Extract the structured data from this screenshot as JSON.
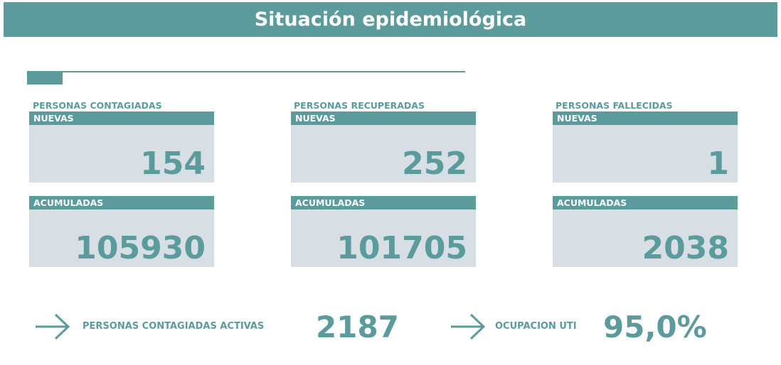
{
  "title": "Situación epidemiológica",
  "accent_color": "#5b9b9c",
  "card_bg_color": "#d7dee4",
  "columns": [
    {
      "title": "PERSONAS CONTAGIADAS",
      "new_label": "NUEVAS",
      "new_value": "154",
      "total_label": "ACUMULADAS",
      "total_value": "105930"
    },
    {
      "title": "PERSONAS RECUPERADAS",
      "new_label": "NUEVAS",
      "new_value": "252",
      "total_label": "ACUMULADAS",
      "total_value": "101705"
    },
    {
      "title": "PERSONAS FALLECIDAS",
      "new_label": "NUEVAS",
      "new_value": "1",
      "total_label": "ACUMULADAS",
      "total_value": "2038"
    }
  ],
  "active": {
    "label": "PERSONAS CONTAGIADAS ACTIVAS",
    "value": "2187",
    "icon": "arrow-right-icon"
  },
  "icu": {
    "label": "OCUPACION UTI",
    "value": "95,0%",
    "icon": "arrow-right-icon"
  }
}
